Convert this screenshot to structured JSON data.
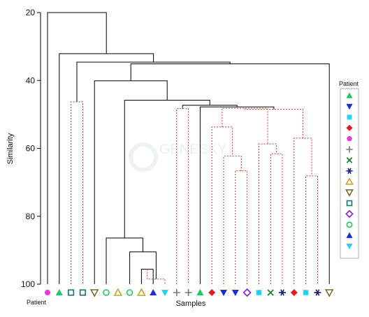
{
  "chart_data": {
    "type": "dendrogram",
    "ylabel": "Similarity",
    "xlabel": "Samples",
    "x_start_label": "Patient",
    "ylim": [
      20,
      100
    ],
    "y_ticks": [
      20,
      40,
      60,
      80,
      100
    ],
    "grid": false,
    "legend": {
      "title": "Patient",
      "placement": "right",
      "entries": [
        {
          "symbol": "triangle-up",
          "color": "#22c55e"
        },
        {
          "symbol": "triangle-down",
          "color": "#1d2fd0"
        },
        {
          "symbol": "square",
          "color": "#22d3ee"
        },
        {
          "symbol": "diamond",
          "color": "#e11d1d"
        },
        {
          "symbol": "circle",
          "color": "#e83ad6"
        },
        {
          "symbol": "plus",
          "color": "#777777"
        },
        {
          "symbol": "x",
          "color": "#1f7a2e"
        },
        {
          "symbol": "asterisk",
          "color": "#1a237e"
        },
        {
          "symbol": "triangle-up-open",
          "color": "#c9a227"
        },
        {
          "symbol": "triangle-down-open",
          "color": "#7a6a2a"
        },
        {
          "symbol": "square-open",
          "color": "#0f766e"
        },
        {
          "symbol": "diamond-open",
          "color": "#7e22ce"
        },
        {
          "symbol": "circle-open",
          "color": "#22c55e"
        },
        {
          "symbol": "triangle-up",
          "color": "#1d2fd0"
        },
        {
          "symbol": "triangle-down",
          "color": "#22d3ee"
        }
      ]
    },
    "samples": [
      {
        "symbol": "circle",
        "color": "#e83ad6"
      },
      {
        "symbol": "triangle-up",
        "color": "#22c55e"
      },
      {
        "symbol": "square-open",
        "color": "#0f766e"
      },
      {
        "symbol": "square-open",
        "color": "#0f766e"
      },
      {
        "symbol": "triangle-down-open",
        "color": "#7a6a2a"
      },
      {
        "symbol": "circle-open",
        "color": "#22c55e"
      },
      {
        "symbol": "triangle-up-open",
        "color": "#c9a227"
      },
      {
        "symbol": "circle-open",
        "color": "#22c55e"
      },
      {
        "symbol": "triangle-up-open",
        "color": "#c9a227"
      },
      {
        "symbol": "triangle-up",
        "color": "#1d2fd0"
      },
      {
        "symbol": "triangle-down",
        "color": "#22d3ee"
      },
      {
        "symbol": "plus",
        "color": "#777777"
      },
      {
        "symbol": "plus",
        "color": "#777777"
      },
      {
        "symbol": "triangle-up",
        "color": "#22c55e"
      },
      {
        "symbol": "diamond",
        "color": "#e11d1d"
      },
      {
        "symbol": "triangle-down",
        "color": "#1d2fd0"
      },
      {
        "symbol": "triangle-down",
        "color": "#1d2fd0"
      },
      {
        "symbol": "diamond-open",
        "color": "#7e22ce"
      },
      {
        "symbol": "square",
        "color": "#22d3ee"
      },
      {
        "symbol": "x",
        "color": "#1f7a2e"
      },
      {
        "symbol": "asterisk",
        "color": "#1a237e"
      },
      {
        "symbol": "diamond",
        "color": "#e11d1d"
      },
      {
        "symbol": "square",
        "color": "#22d3ee"
      },
      {
        "symbol": "asterisk",
        "color": "#1a237e"
      },
      {
        "symbol": "triangle-down-open",
        "color": "#7a6a2a"
      }
    ],
    "merges": [
      {
        "a": 8,
        "b": 9,
        "similarity": 95.6,
        "style": "solid"
      },
      {
        "a": 8,
        "b": 10,
        "similarity": 98.5,
        "style": "dashed"
      },
      {
        "a": 7,
        "b": 8,
        "similarity": 90.5,
        "style": "solid"
      },
      {
        "a": 5,
        "b": 7,
        "similarity": 86.4,
        "style": "solid"
      },
      {
        "a": 11,
        "b": 12,
        "similarity": 48.3,
        "style": "dashed"
      },
      {
        "a": 16,
        "b": 17,
        "similarity": 66.6,
        "style": "dashed"
      },
      {
        "a": 15,
        "b": 16,
        "similarity": 62.3,
        "style": "dashed"
      },
      {
        "a": 14,
        "b": 15,
        "similarity": 53.7,
        "style": "dashed"
      },
      {
        "a": 19,
        "b": 20,
        "similarity": 61.6,
        "style": "dashed"
      },
      {
        "a": 18,
        "b": 19,
        "similarity": 58.7,
        "style": "dashed"
      },
      {
        "a": 22,
        "b": 23,
        "similarity": 68.1,
        "style": "dashed"
      },
      {
        "a": 21,
        "b": 22,
        "similarity": 57.0,
        "style": "dashed"
      },
      {
        "a": 14,
        "b": 18,
        "similarity": 48.2,
        "style": "dashed"
      },
      {
        "a": 14,
        "b": 21,
        "similarity": 48.5,
        "style": "dashed"
      },
      {
        "a": 13,
        "b": 14,
        "similarity": 47.8,
        "style": "solid"
      },
      {
        "a": 11,
        "b": 13,
        "similarity": 47.3,
        "style": "solid"
      },
      {
        "a": 5,
        "b": 11,
        "similarity": 45.8,
        "style": "solid"
      },
      {
        "a": 4,
        "b": 5,
        "similarity": 40.1,
        "style": "solid"
      },
      {
        "a": 4,
        "b": 24,
        "similarity": 35.1,
        "style": "solid"
      },
      {
        "a": 2,
        "b": 3,
        "similarity": 46.3,
        "style": "dashed"
      },
      {
        "a": 2,
        "b": 4,
        "similarity": 34.6,
        "style": "solid"
      },
      {
        "a": 1,
        "b": 2,
        "similarity": 32.1,
        "style": "solid"
      },
      {
        "a": 0,
        "b": 1,
        "similarity": 20.0,
        "style": "solid"
      }
    ]
  },
  "watermark": {
    "brand": "GENESKY"
  }
}
